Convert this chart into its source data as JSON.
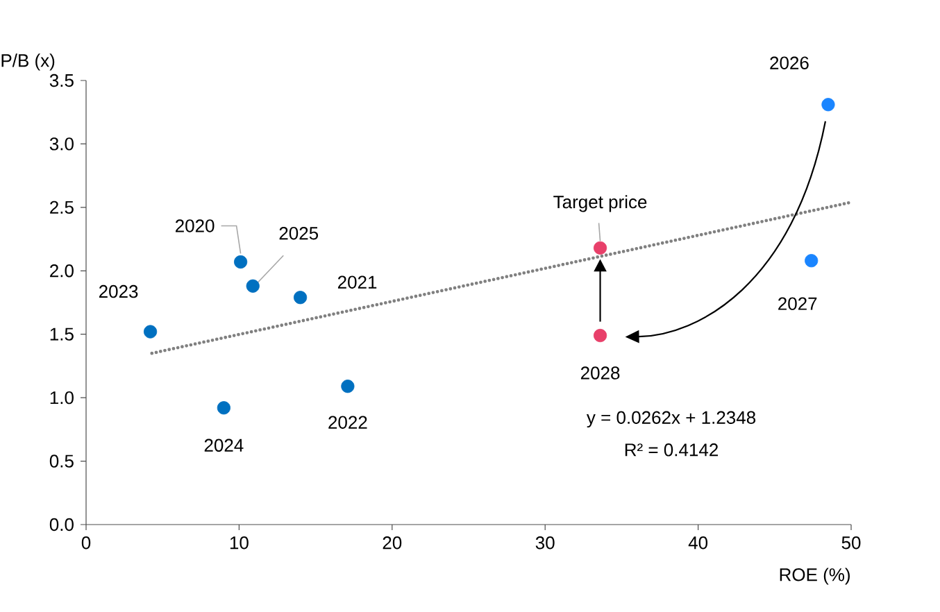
{
  "chart_data": {
    "type": "scatter",
    "xlabel": "ROE (%)",
    "ylabel": "P/B (x)",
    "xlim": [
      0,
      50
    ],
    "ylim": [
      0,
      3.5
    ],
    "xticks": [
      0,
      10,
      20,
      30,
      40,
      50
    ],
    "yticks": [
      {
        "value": 0,
        "label": "0.0"
      },
      {
        "value": 0.5,
        "label": "0.5"
      },
      {
        "value": 1,
        "label": "1.0"
      },
      {
        "value": 1.5,
        "label": "1.5"
      },
      {
        "value": 2,
        "label": "2.0"
      },
      {
        "value": 2.5,
        "label": "2.5"
      },
      {
        "value": 3,
        "label": "3.0"
      },
      {
        "value": 3.5,
        "label": "3.5"
      }
    ],
    "marker": "circle",
    "series": [
      {
        "x": [
          10.1,
          14.0,
          17.1,
          4.2,
          9.0,
          10.9,
          48.5,
          47.4,
          33.6,
          33.6
        ],
        "values": [
          2.07,
          1.79,
          1.09,
          1.52,
          0.92,
          1.88,
          3.31,
          2.08,
          2.18,
          1.49
        ],
        "colors": [
          "#0070c0",
          "#0070c0",
          "#0070c0",
          "#0070c0",
          "#0070c0",
          "#0070c0",
          "#1a85ff",
          "#1a85ff",
          "#e8406a",
          "#e8406a"
        ]
      },
      {
        "type": "line",
        "x": [
          4.3,
          50
        ],
        "values": [
          1.35,
          2.54
        ],
        "color": "#808080",
        "line_style": "dotted",
        "marker": "none"
      }
    ],
    "annotations": [
      {
        "text": "2020",
        "x": 10.1,
        "y": 2.07
      },
      {
        "text": "2021",
        "x": 14.0,
        "y": 1.79
      },
      {
        "text": "2022",
        "x": 17.1,
        "y": 1.09
      },
      {
        "text": "2023",
        "x": 4.2,
        "y": 1.52
      },
      {
        "text": "2024",
        "x": 9.0,
        "y": 0.92
      },
      {
        "text": "2025",
        "x": 10.9,
        "y": 1.88
      },
      {
        "text": "2026",
        "x": 48.5,
        "y": 3.31
      },
      {
        "text": "2027",
        "x": 47.4,
        "y": 2.08
      },
      {
        "text": "Target price",
        "x": 33.6,
        "y": 2.18
      },
      {
        "text": "2028",
        "x": 33.6,
        "y": 1.49
      },
      "y = 0.0262x + 1.2348",
      "R² = 0.4142"
    ]
  }
}
